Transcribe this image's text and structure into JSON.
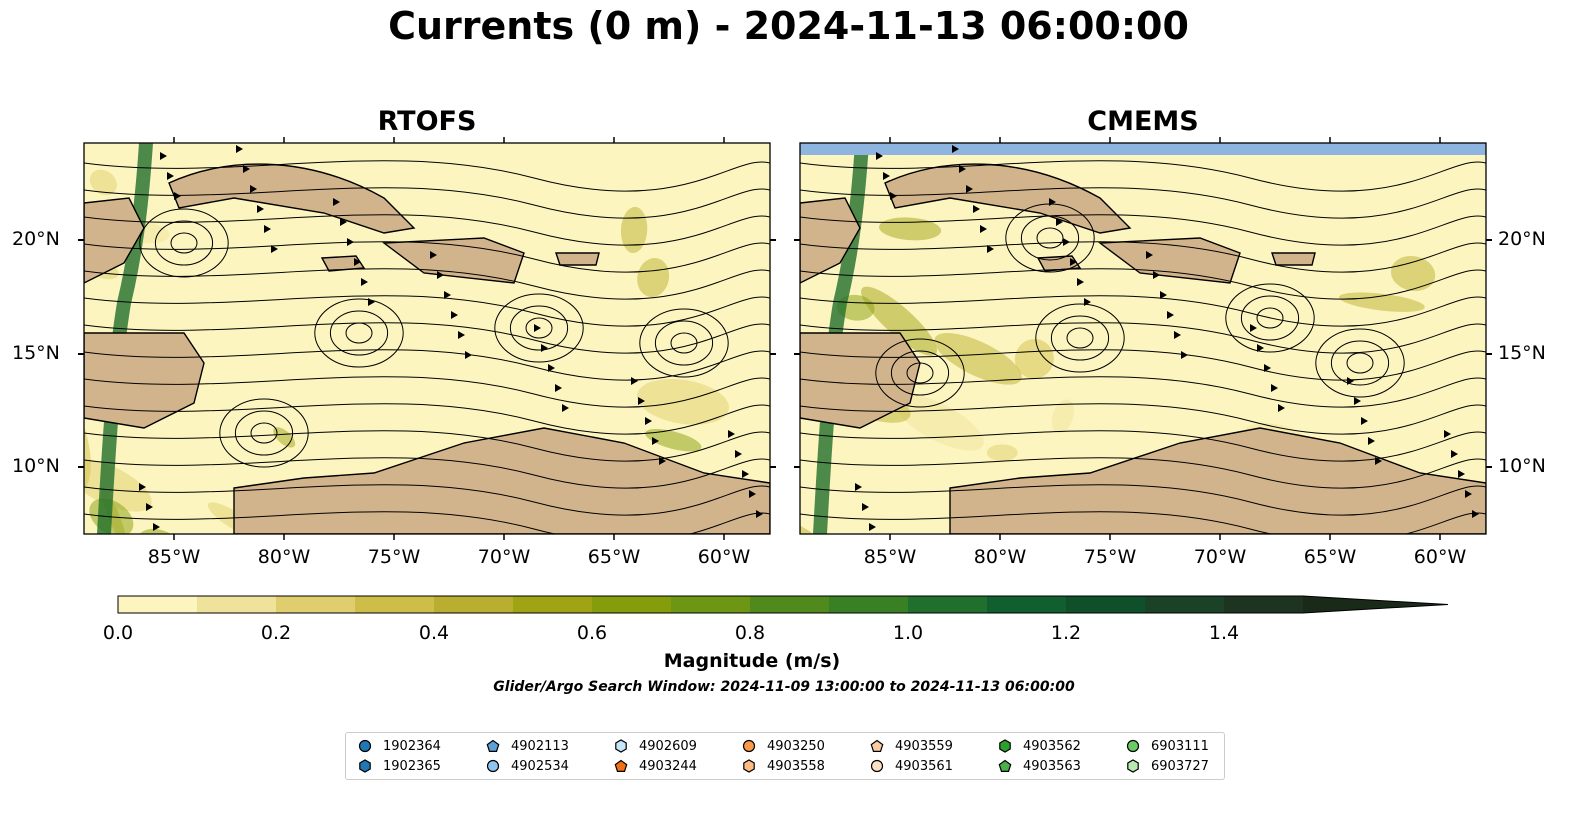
{
  "title": "Currents (0 m) - 2024-11-13 06:00:00",
  "panels": [
    {
      "title": "RTOFS",
      "id": "rtofs"
    },
    {
      "title": "CMEMS",
      "id": "cmems"
    }
  ],
  "map": {
    "x_ticks": [
      "85°W",
      "80°W",
      "75°W",
      "70°W",
      "65°W",
      "60°W"
    ],
    "y_ticks": [
      "20°N",
      "15°N",
      "10°N"
    ],
    "land_color": "#d2b48c",
    "missing_data_color": "#8eb4e0"
  },
  "colorbar": {
    "label": "Magnitude (m/s)",
    "ticks": [
      "0.0",
      "0.2",
      "0.4",
      "0.6",
      "0.8",
      "1.0",
      "1.2",
      "1.4"
    ],
    "min": 0.0,
    "max": 1.5,
    "step": 0.1,
    "extend": "max",
    "colors": [
      "#fdf5c0",
      "#efe29b",
      "#dfcd6e",
      "#cfbd49",
      "#b9ae2f",
      "#9fa414",
      "#859d0b",
      "#6d9614",
      "#508a1c",
      "#397f24",
      "#216f2c",
      "#115f2f",
      "#0f502b",
      "#1a4226",
      "#1f3420",
      "#1a2a18"
    ]
  },
  "search_window": "Glider/Argo Search Window: 2024-11-09 13:00:00 to 2024-11-13 06:00:00",
  "legend": {
    "columns": [
      [
        {
          "id": "1902364",
          "marker": "circle",
          "color": "#1f77b4"
        },
        {
          "id": "1902365",
          "marker": "hexagon",
          "color": "#1f77b4"
        }
      ],
      [
        {
          "id": "4902113",
          "marker": "pentagon",
          "color": "#5ca0d6"
        },
        {
          "id": "4902534",
          "marker": "circle",
          "color": "#8ec6ef"
        }
      ],
      [
        {
          "id": "4902609",
          "marker": "hexagon",
          "color": "#c6e6fa"
        },
        {
          "id": "4903244",
          "marker": "pentagon",
          "color": "#f07018"
        }
      ],
      [
        {
          "id": "4903250",
          "marker": "circle",
          "color": "#fb9a4a"
        },
        {
          "id": "4903558",
          "marker": "hexagon",
          "color": "#fdbb83"
        }
      ],
      [
        {
          "id": "4903559",
          "marker": "pentagon",
          "color": "#fdcba2"
        },
        {
          "id": "4903561",
          "marker": "circle",
          "color": "#fde0c4"
        }
      ],
      [
        {
          "id": "4903562",
          "marker": "hexagon",
          "color": "#2ca02c"
        },
        {
          "id": "4903563",
          "marker": "pentagon",
          "color": "#4bb04a"
        }
      ],
      [
        {
          "id": "6903111",
          "marker": "circle",
          "color": "#6acc64"
        },
        {
          "id": "6903727",
          "marker": "hexagon",
          "color": "#b8eab0"
        }
      ]
    ]
  }
}
